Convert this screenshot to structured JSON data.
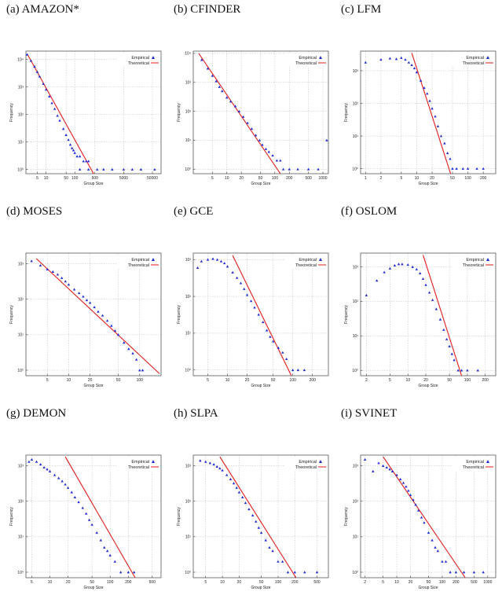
{
  "colors": {
    "empirical": "#1f2ad6",
    "theoretical": "#e01a1a",
    "grid": "#bdbdbd",
    "frame": "#222222"
  },
  "chart_data": [
    {
      "label": "(a) AMAZON*",
      "type": "scatter",
      "xscale": "log",
      "yscale": "log",
      "xlabel": "Group Size",
      "ylabel": "Frequency",
      "grid": true,
      "legend_position": "top-right",
      "xlim": [
        2,
        100000
      ],
      "ylim": [
        0.7,
        20000
      ],
      "xticks": [
        5,
        10,
        50,
        100,
        500,
        5000,
        50000
      ],
      "xticklabels": [
        "5",
        "10",
        "50",
        "100",
        "500",
        "5000",
        "50000"
      ],
      "yticks": [
        1,
        10,
        100,
        1000,
        10000
      ],
      "yticklabels": [
        "10⁰",
        "10¹",
        "10²",
        "10³",
        "10⁴"
      ],
      "series": [
        {
          "name": "Empirical",
          "marker": "triangle",
          "x": [
            2.2,
            3,
            4,
            5,
            6,
            8,
            10,
            13,
            16,
            20,
            25,
            30,
            40,
            50,
            60,
            70,
            80,
            90,
            100,
            120,
            150,
            200,
            250,
            300,
            150,
            300,
            600,
            1000,
            2000,
            5000,
            10000,
            20000,
            60000
          ],
          "y": [
            15000,
            9000,
            5500,
            3500,
            2400,
            1300,
            800,
            450,
            260,
            160,
            90,
            60,
            30,
            18,
            12,
            8,
            6,
            5,
            4,
            3,
            3,
            2,
            2,
            2,
            1,
            1,
            1,
            1,
            1,
            1,
            1,
            1,
            1
          ]
        },
        {
          "name": "Theoretical",
          "line": true,
          "x": [
            2.2,
            450
          ],
          "y": [
            16000,
            0.7
          ]
        }
      ]
    },
    {
      "label": "(b) CFINDER",
      "type": "scatter",
      "xscale": "log",
      "yscale": "log",
      "xlabel": "Group Size",
      "ylabel": "Frequency",
      "grid": true,
      "legend_position": "top-right",
      "xlim": [
        2,
        1300
      ],
      "ylim": [
        0.7,
        12000
      ],
      "xticks": [
        5,
        10,
        20,
        50,
        100,
        200,
        500,
        1000
      ],
      "xticklabels": [
        "5",
        "10",
        "20",
        "50",
        "100",
        "200",
        "500",
        "1000"
      ],
      "yticks": [
        1,
        10,
        100,
        1000,
        10000
      ],
      "yticklabels": [
        "10⁰",
        "10¹",
        "10²",
        "10³",
        "10⁴"
      ],
      "series": [
        {
          "name": "Empirical",
          "marker": "triangle",
          "x": [
            3,
            4,
            5,
            6,
            7,
            8,
            10,
            12,
            15,
            18,
            22,
            27,
            33,
            40,
            48,
            55,
            65,
            75,
            90,
            110,
            130,
            150,
            200,
            300,
            500,
            800,
            1200
          ],
          "y": [
            6000,
            3000,
            1700,
            1100,
            700,
            500,
            300,
            220,
            150,
            100,
            65,
            40,
            25,
            15,
            10,
            7,
            5,
            4,
            3,
            2,
            2,
            1,
            1,
            1,
            1,
            1,
            10
          ]
        },
        {
          "name": "Theoretical",
          "line": true,
          "x": [
            2.6,
            130
          ],
          "y": [
            10000,
            0.7
          ]
        }
      ]
    },
    {
      "label": "(c) LFM",
      "type": "scatter",
      "xscale": "log",
      "yscale": "log",
      "xlabel": "Group Size",
      "ylabel": "Frequency",
      "grid": true,
      "legend_position": "top-right",
      "xlim": [
        0.8,
        350
      ],
      "ylim": [
        0.7,
        4000
      ],
      "xticks": [
        1,
        2,
        5,
        10,
        20,
        50,
        100,
        200
      ],
      "xticklabels": [
        "1",
        "2",
        "5",
        "10",
        "20",
        "50",
        "100",
        "200"
      ],
      "yticks": [
        1,
        10,
        100,
        1000
      ],
      "yticklabels": [
        "10⁰",
        "10¹",
        "10²",
        "10³"
      ],
      "series": [
        {
          "name": "Empirical",
          "marker": "triangle",
          "x": [
            1,
            2,
            3,
            4,
            5,
            6,
            7,
            8,
            9,
            10,
            12,
            14,
            16,
            18,
            20,
            23,
            26,
            30,
            35,
            40,
            45,
            50,
            60,
            80,
            100,
            150,
            200
          ],
          "y": [
            1800,
            2200,
            2400,
            2300,
            2500,
            2200,
            1800,
            1500,
            1200,
            900,
            500,
            300,
            200,
            120,
            70,
            40,
            20,
            10,
            6,
            3,
            2,
            1,
            1,
            1,
            1,
            1,
            1
          ]
        },
        {
          "name": "Theoretical",
          "line": true,
          "x": [
            8,
            46
          ],
          "y": [
            3500,
            0.7
          ]
        }
      ]
    },
    {
      "label": "(d) MOSES",
      "type": "scatter",
      "xscale": "log",
      "yscale": "log",
      "xlabel": "Group Size",
      "ylabel": "Frequency",
      "grid": true,
      "legend_position": "top-right",
      "xlim": [
        2.5,
        200
      ],
      "ylim": [
        0.7,
        2000
      ],
      "xticks": [
        5,
        10,
        20,
        50,
        100
      ],
      "xticklabels": [
        "5",
        "10",
        "20",
        "50",
        "100"
      ],
      "yticks": [
        1,
        10,
        100,
        1000
      ],
      "yticklabels": [
        "10⁰",
        "10¹",
        "10²",
        "10³"
      ],
      "series": [
        {
          "name": "Empirical",
          "marker": "triangle",
          "x": [
            3,
            4,
            5,
            6,
            7,
            8,
            9,
            10,
            12,
            14,
            16,
            18,
            20,
            23,
            26,
            30,
            35,
            40,
            45,
            50,
            60,
            70,
            80,
            90,
            100,
            110
          ],
          "y": [
            1200,
            900,
            700,
            600,
            500,
            400,
            320,
            260,
            190,
            150,
            120,
            95,
            80,
            60,
            45,
            35,
            25,
            18,
            13,
            10,
            6,
            4,
            3,
            2,
            1,
            1
          ]
        },
        {
          "name": "Theoretical",
          "line": true,
          "x": [
            3.5,
            190
          ],
          "y": [
            1400,
            0.8
          ]
        }
      ]
    },
    {
      "label": "(e) GCE",
      "type": "scatter",
      "xscale": "log",
      "yscale": "log",
      "xlabel": "Group Size",
      "ylabel": "Frequency",
      "grid": true,
      "legend_position": "top-right",
      "xlim": [
        3,
        350
      ],
      "ylim": [
        0.7,
        1500
      ],
      "xticks": [
        5,
        10,
        20,
        50,
        100,
        200
      ],
      "xticklabels": [
        "5",
        "10",
        "20",
        "50",
        "100",
        "200"
      ],
      "yticks": [
        1,
        10,
        100,
        1000
      ],
      "yticklabels": [
        "10⁰",
        "10¹",
        "10²",
        "10³"
      ],
      "series": [
        {
          "name": "Empirical",
          "marker": "triangle",
          "x": [
            3.5,
            4,
            5,
            6,
            7,
            8,
            9,
            10,
            12,
            14,
            16,
            18,
            20,
            23,
            26,
            30,
            35,
            40,
            45,
            50,
            60,
            70,
            80,
            100,
            120,
            150
          ],
          "y": [
            600,
            900,
            1000,
            1050,
            1000,
            900,
            800,
            650,
            450,
            320,
            230,
            160,
            110,
            75,
            50,
            32,
            20,
            12,
            8,
            6,
            4,
            3,
            2,
            1,
            1,
            1
          ]
        },
        {
          "name": "Theoretical",
          "line": true,
          "x": [
            12,
            95
          ],
          "y": [
            1300,
            0.7
          ]
        }
      ]
    },
    {
      "label": "(f) OSLOM",
      "type": "scatter",
      "xscale": "log",
      "yscale": "log",
      "xlabel": "Group Size",
      "ylabel": "Frequency",
      "grid": true,
      "legend_position": "top-right",
      "xlim": [
        1.6,
        300
      ],
      "ylim": [
        0.7,
        2500
      ],
      "xticks": [
        2,
        5,
        10,
        20,
        50,
        100,
        200
      ],
      "xticklabels": [
        "2",
        "5",
        "10",
        "20",
        "50",
        "100",
        "200"
      ],
      "yticks": [
        1,
        10,
        100,
        1000
      ],
      "yticklabels": [
        "10⁰",
        "10¹",
        "10²",
        "10³"
      ],
      "series": [
        {
          "name": "Empirical",
          "marker": "triangle",
          "x": [
            2,
            3,
            4,
            5,
            6,
            7,
            8,
            10,
            12,
            14,
            16,
            18,
            20,
            23,
            26,
            30,
            35,
            40,
            45,
            50,
            55,
            60,
            70,
            80,
            100,
            150
          ],
          "y": [
            150,
            400,
            700,
            900,
            1100,
            1200,
            1200,
            1150,
            1000,
            850,
            650,
            450,
            300,
            180,
            110,
            60,
            30,
            15,
            8,
            5,
            3,
            2,
            1,
            1,
            1,
            1
          ]
        },
        {
          "name": "Theoretical",
          "line": true,
          "x": [
            18,
            80
          ],
          "y": [
            2200,
            0.7
          ]
        }
      ]
    },
    {
      "label": "(g) DEMON",
      "type": "scatter",
      "xscale": "log",
      "yscale": "log",
      "xlabel": "Group Size",
      "ylabel": "Frequency",
      "grid": true,
      "legend_position": "top-right",
      "xlim": [
        4,
        700
      ],
      "ylim": [
        0.7,
        2000
      ],
      "xticks": [
        5,
        10,
        20,
        50,
        100,
        200,
        500
      ],
      "xticklabels": [
        "5",
        "10",
        "20",
        "50",
        "100",
        "200",
        "500"
      ],
      "yticks": [
        1,
        10,
        100,
        1000
      ],
      "yticklabels": [
        "10⁰",
        "10¹",
        "10²",
        "10³"
      ],
      "series": [
        {
          "name": "Empirical",
          "marker": "triangle",
          "x": [
            4.5,
            5,
            6,
            7,
            8,
            9,
            10,
            12,
            14,
            16,
            18,
            20,
            23,
            26,
            30,
            35,
            40,
            45,
            50,
            60,
            70,
            80,
            90,
            100,
            120,
            150,
            200,
            250
          ],
          "y": [
            1300,
            1500,
            1300,
            1100,
            900,
            800,
            700,
            550,
            450,
            370,
            300,
            240,
            180,
            130,
            95,
            65,
            45,
            30,
            22,
            13,
            8,
            5,
            4,
            3,
            2,
            1,
            1,
            1
          ]
        },
        {
          "name": "Theoretical",
          "line": true,
          "x": [
            18,
            260
          ],
          "y": [
            1800,
            0.7
          ]
        }
      ]
    },
    {
      "label": "(h) SLPA",
      "type": "scatter",
      "xscale": "log",
      "yscale": "log",
      "xlabel": "Group Size",
      "ylabel": "Frequency",
      "grid": true,
      "legend_position": "top-right",
      "xlim": [
        3,
        800
      ],
      "ylim": [
        0.7,
        2000
      ],
      "xticks": [
        5,
        10,
        20,
        50,
        100,
        200,
        500
      ],
      "xticklabels": [
        "5",
        "10",
        "20",
        "50",
        "100",
        "200",
        "500"
      ],
      "yticks": [
        1,
        10,
        100,
        1000
      ],
      "yticklabels": [
        "10⁰",
        "10¹",
        "10²",
        "10³"
      ],
      "series": [
        {
          "name": "Empirical",
          "marker": "triangle",
          "x": [
            4,
            5,
            6,
            7,
            8,
            9,
            10,
            12,
            14,
            16,
            18,
            20,
            23,
            26,
            30,
            35,
            40,
            45,
            50,
            60,
            70,
            80,
            100,
            120,
            150,
            200,
            300,
            500
          ],
          "y": [
            1400,
            1300,
            1200,
            1100,
            950,
            850,
            750,
            550,
            420,
            320,
            240,
            180,
            130,
            90,
            60,
            40,
            27,
            18,
            13,
            8,
            5,
            4,
            2,
            2,
            1,
            1,
            1,
            1
          ]
        },
        {
          "name": "Theoretical",
          "line": true,
          "x": [
            9,
            210
          ],
          "y": [
            1800,
            0.7
          ]
        }
      ]
    },
    {
      "label": "(i) SVINET",
      "type": "scatter",
      "xscale": "log",
      "yscale": "log",
      "xlabel": "Group Size",
      "ylabel": "Frequency",
      "grid": true,
      "legend_position": "top-right",
      "xlim": [
        1.6,
        1500
      ],
      "ylim": [
        0.7,
        2000
      ],
      "xticks": [
        2,
        5,
        10,
        20,
        50,
        100,
        200,
        500,
        1000
      ],
      "xticklabels": [
        "2",
        "5",
        "10",
        "20",
        "50",
        "100",
        "200",
        "500",
        "1000"
      ],
      "yticks": [
        1,
        10,
        100,
        1000
      ],
      "yticklabels": [
        "10⁰",
        "10¹",
        "10²",
        "10³"
      ],
      "series": [
        {
          "name": "Empirical",
          "marker": "triangle",
          "x": [
            2,
            3,
            4,
            5,
            6,
            7,
            8,
            10,
            12,
            14,
            16,
            18,
            20,
            23,
            26,
            30,
            35,
            40,
            50,
            60,
            70,
            80,
            100,
            120,
            150,
            200,
            300,
            500,
            800
          ],
          "y": [
            1500,
            700,
            1200,
            1000,
            900,
            800,
            700,
            550,
            420,
            330,
            260,
            200,
            150,
            110,
            80,
            55,
            35,
            25,
            13,
            8,
            5,
            4,
            2,
            2,
            1,
            1,
            1,
            1,
            1
          ]
        },
        {
          "name": "Theoretical",
          "line": true,
          "x": [
            5,
            320
          ],
          "y": [
            1800,
            0.7
          ]
        }
      ]
    }
  ]
}
